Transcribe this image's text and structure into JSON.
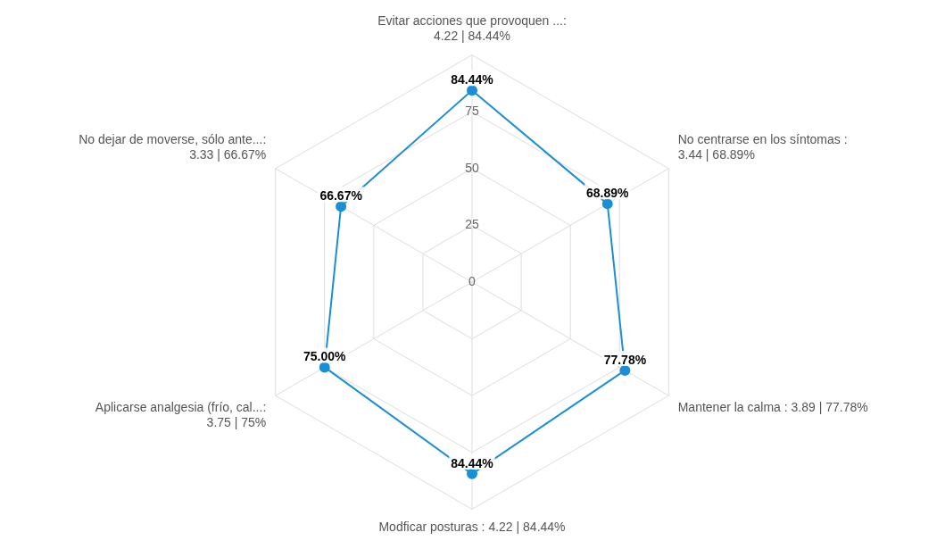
{
  "chart_data": {
    "type": "radar",
    "categories": [
      "Evitar acciones que provoquen ...:\n4.22 | 84.44%",
      "No centrarse en los síntomas :\n3.44 | 68.89%",
      "Mantener la calma : 3.89 | 77.78%",
      "Modficar posturas : 4.22 | 84.44%",
      "Aplicarse analgesia (frío, cal...:\n3.75 | 75%",
      "No dejar de moverse, sólo ante...:\n3.33 | 66.67%"
    ],
    "series": [
      {
        "color": "#1a8fd6",
        "values": [
          84.44,
          68.89,
          77.78,
          84.44,
          75.0,
          66.67
        ],
        "value_labels": [
          "84.44%",
          "68.89%",
          "77.78%",
          "84.44%",
          "75.00%",
          "66.67%"
        ]
      }
    ],
    "ylim": [
      0,
      100
    ],
    "yticks": [
      0,
      25,
      50,
      75
    ],
    "grid": true,
    "legend": false,
    "marker": "circle",
    "line_style": "solid"
  }
}
